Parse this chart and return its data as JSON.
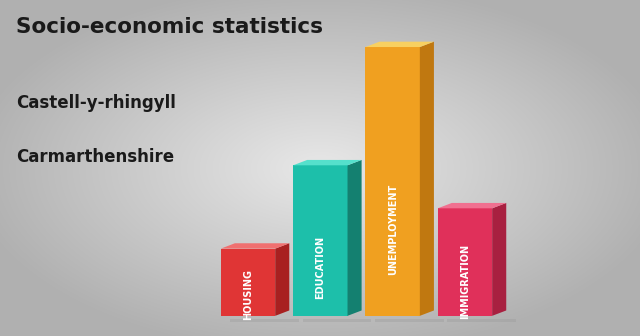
{
  "title_line1": "Socio-economic statistics",
  "title_line2": "Castell-y-rhingyll",
  "title_line3": "Carmarthenshire",
  "categories": [
    "HOUSING",
    "EDUCATION",
    "UNEMPLOYMENT",
    "IMMIGRATION"
  ],
  "values": [
    0.25,
    0.56,
    1.0,
    0.4
  ],
  "bar_front_colors": [
    "#e03535",
    "#1dbfaa",
    "#f0a020",
    "#e0305a"
  ],
  "bar_top_colors": [
    "#f07070",
    "#55e0cc",
    "#f8d060",
    "#f07090"
  ],
  "bar_right_colors": [
    "#a82020",
    "#148070",
    "#c07810",
    "#a82040"
  ],
  "background_color": "#c8c8c8",
  "text_color": "#1a1a1a",
  "figsize": [
    6.4,
    3.36
  ],
  "dpi": 100
}
